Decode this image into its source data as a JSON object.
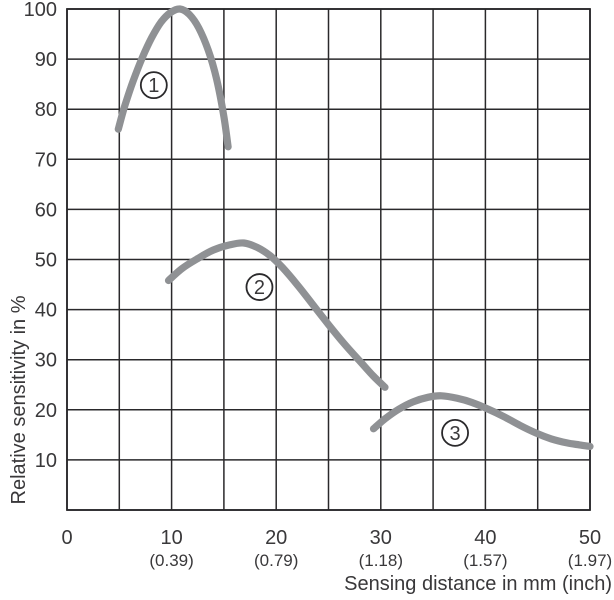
{
  "figure": {
    "background": "#ffffff",
    "kind": "relative-sensitivity-vs-sensing-distance-chart"
  },
  "chart_data": {
    "type": "line",
    "title": "",
    "xlabel": "Sensing distance in mm (inch)",
    "ylabel": "Relative sensitivity in %",
    "xlim": [
      0,
      50
    ],
    "ylim": [
      0,
      100
    ],
    "grid": true,
    "x_grid_step": 5,
    "y_grid_step": 10,
    "legend_position": "none",
    "colors": {
      "curve": "#8f9194",
      "grid": "#2a292b",
      "text": "#39383a",
      "badge_fill": "#ffffff"
    },
    "y_ticks": [
      100,
      90,
      80,
      70,
      60,
      50,
      40,
      30,
      20,
      10
    ],
    "x_ticks": [
      {
        "mm": "0",
        "inch": ""
      },
      {
        "mm": "10",
        "inch": "(0.39)"
      },
      {
        "mm": "20",
        "inch": "(0.79)"
      },
      {
        "mm": "30",
        "inch": "(1.18)"
      },
      {
        "mm": "40",
        "inch": "(1.57)"
      },
      {
        "mm": "50",
        "inch": "(1.97)"
      }
    ],
    "series": [
      {
        "name": "curve-1",
        "label": "1",
        "points": [
          [
            4.9,
            76
          ],
          [
            5.5,
            80.5
          ],
          [
            6.3,
            85.5
          ],
          [
            7.2,
            90.3
          ],
          [
            8.1,
            94.3
          ],
          [
            9.0,
            97.4
          ],
          [
            9.9,
            99.3
          ],
          [
            10.8,
            100
          ],
          [
            11.7,
            98.9
          ],
          [
            12.6,
            96.2
          ],
          [
            13.5,
            91.8
          ],
          [
            14.3,
            86.0
          ],
          [
            15.0,
            78.5
          ],
          [
            15.4,
            72.5
          ]
        ]
      },
      {
        "name": "curve-2",
        "label": "2",
        "points": [
          [
            9.7,
            45.8
          ],
          [
            11.0,
            48.2
          ],
          [
            12.5,
            50.2
          ],
          [
            14.0,
            51.9
          ],
          [
            15.5,
            52.9
          ],
          [
            16.9,
            53.3
          ],
          [
            18.2,
            52.4
          ],
          [
            19.4,
            50.8
          ],
          [
            20.6,
            48.4
          ],
          [
            22.0,
            45.0
          ],
          [
            23.5,
            41.0
          ],
          [
            25.0,
            37.0
          ],
          [
            26.5,
            33.2
          ],
          [
            28.0,
            29.7
          ],
          [
            29.3,
            26.7
          ],
          [
            30.4,
            24.5
          ]
        ]
      },
      {
        "name": "curve-3",
        "label": "3",
        "points": [
          [
            29.3,
            16.2
          ],
          [
            30.4,
            18.2
          ],
          [
            31.7,
            20.1
          ],
          [
            33.1,
            21.6
          ],
          [
            34.5,
            22.5
          ],
          [
            35.8,
            22.8
          ],
          [
            37.3,
            22.3
          ],
          [
            38.8,
            21.4
          ],
          [
            40.3,
            20.1
          ],
          [
            41.8,
            18.6
          ],
          [
            43.3,
            16.9
          ],
          [
            44.8,
            15.4
          ],
          [
            46.3,
            14.2
          ],
          [
            47.8,
            13.4
          ],
          [
            49.0,
            13.0
          ],
          [
            50.0,
            12.7
          ]
        ]
      }
    ],
    "annotations": [
      {
        "label": "1",
        "x": 8.3,
        "y": 84.8
      },
      {
        "label": "2",
        "x": 18.4,
        "y": 44.5
      },
      {
        "label": "3",
        "x": 37.1,
        "y": 15.4
      }
    ]
  }
}
